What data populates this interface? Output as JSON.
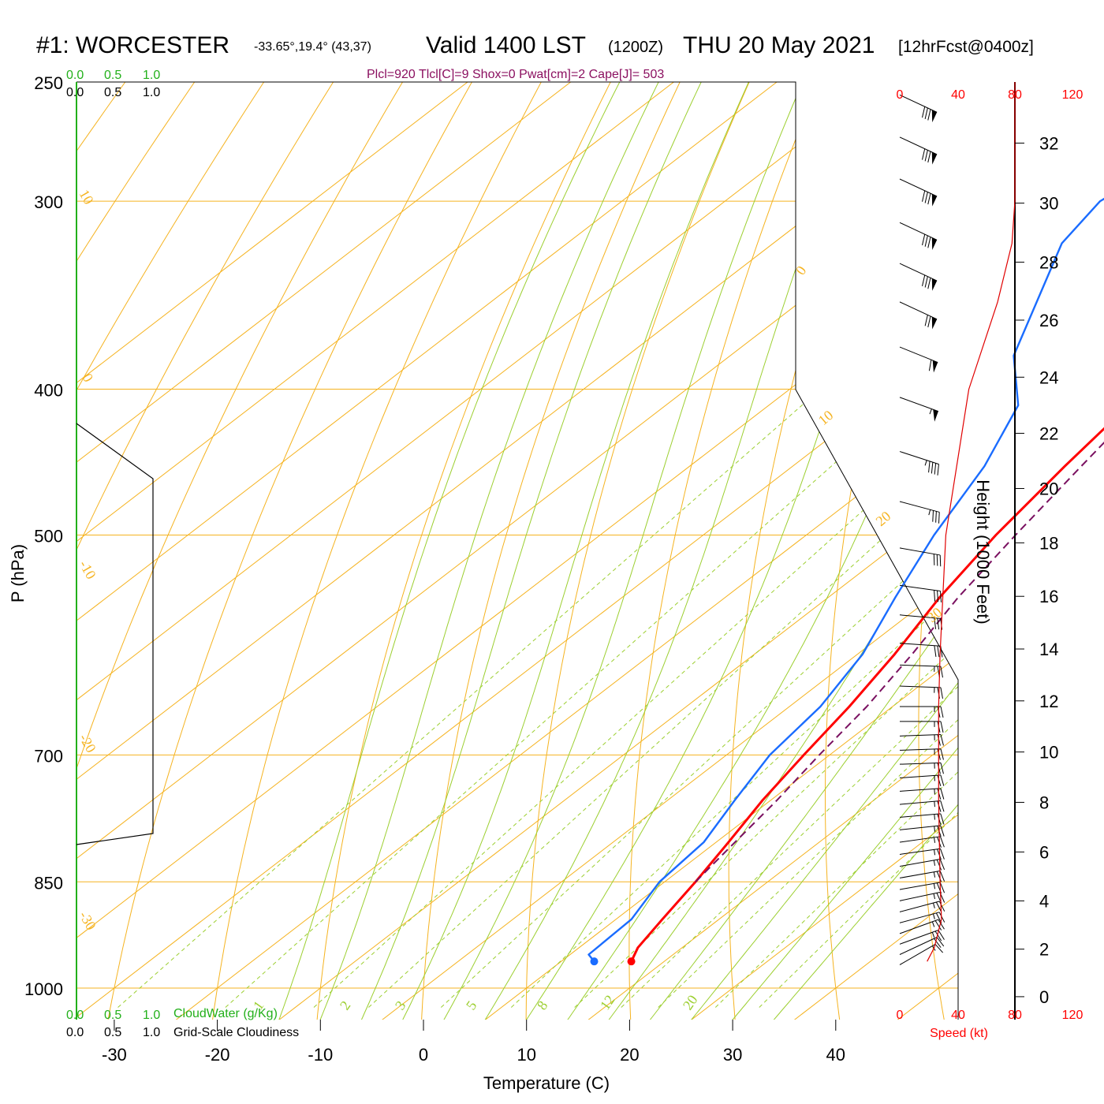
{
  "header": {
    "station": "#1: WORCESTER",
    "coords": "-33.65°,19.4° (43,37)",
    "valid_label": "Valid 1400 LST",
    "zulu": "(1200Z)",
    "date": "THU 20 May 2021",
    "forecast": "[12hrFcst@0400z]",
    "indices": "Plcl=920 Tlcl[C]=9 Shox=0 Pwat[cm]=2 Cape[J]= 503"
  },
  "cloud_scale": {
    "top_green": [
      "0.0",
      "0.5",
      "1.0"
    ],
    "top_black": [
      "0.0",
      "0.5",
      "1.0"
    ],
    "bottom_green": [
      "0.0",
      "0.5",
      "1.0"
    ],
    "bottom_black": [
      "0.0",
      "0.5",
      "1.0"
    ],
    "cloudwater_label": "CloudWater (g/Kg)",
    "cloudiness_label": "Grid-Scale Cloudiness"
  },
  "speed_axis": {
    "ticks": [
      "0",
      "40",
      "80",
      "120"
    ],
    "label": "Speed (kt)"
  },
  "colors": {
    "temperature": "#ff0000",
    "dewpoint": "#1a6cff",
    "parcel": "#7a1060",
    "isotherm": "#f5b320",
    "dry_adiabat": "#f5b320",
    "moist_adiabat": "#9ccf30",
    "mixing_ratio": "#9ccf30",
    "cloud": "#22b01a",
    "wind_speed": "#e00000"
  },
  "chart_data": {
    "type": "line",
    "ylabel": "P (hPa)",
    "xlabel": "Temperature (C)",
    "y2label": "Height (1000 Feet)",
    "pressure_ticks": [
      250,
      300,
      400,
      500,
      700,
      850,
      1000
    ],
    "ylim": [
      1000,
      250
    ],
    "temperature_ticks": [
      -30,
      -20,
      -10,
      0,
      10,
      20,
      30,
      40
    ],
    "height_ticks": [
      0,
      2,
      4,
      6,
      8,
      10,
      12,
      14,
      16,
      18,
      20,
      22,
      24,
      26,
      28,
      30,
      32
    ],
    "dry_adiabat_labels": [
      "10",
      "0",
      "-10",
      "-20",
      "-30",
      "0",
      "10",
      "20",
      "30"
    ],
    "mixing_ratio_labels": [
      "1",
      "2",
      "3",
      "5",
      "8",
      "12",
      "20"
    ],
    "series": [
      {
        "name": "Temperature",
        "points": [
          [
            16.8,
            960
          ],
          [
            15.7,
            940
          ],
          [
            14.5,
            900
          ],
          [
            13.0,
            850
          ],
          [
            11.2,
            800
          ],
          [
            9.2,
            750
          ],
          [
            7.5,
            700
          ],
          [
            5.8,
            650
          ],
          [
            3.6,
            600
          ],
          [
            0.8,
            550
          ],
          [
            -1.6,
            500
          ],
          [
            -3.6,
            450
          ],
          [
            -5.5,
            400
          ],
          [
            -7.1,
            350
          ],
          [
            -8.2,
            300
          ],
          [
            -8.5,
            280
          ],
          [
            -9.0,
            260
          ]
        ]
      },
      {
        "name": "Dewpoint",
        "points": [
          [
            13.2,
            960
          ],
          [
            11.8,
            950
          ],
          [
            11.5,
            900
          ],
          [
            9.5,
            850
          ],
          [
            8.8,
            800
          ],
          [
            6.5,
            750
          ],
          [
            4.2,
            700
          ],
          [
            3.0,
            650
          ],
          [
            0.5,
            600
          ],
          [
            -3.5,
            550
          ],
          [
            -7.6,
            500
          ],
          [
            -11.4,
            450
          ],
          [
            -15.8,
            410
          ],
          [
            -22.5,
            380
          ],
          [
            -32.0,
            320
          ],
          [
            -33.6,
            300
          ],
          [
            -30.2,
            260
          ]
        ]
      },
      {
        "name": "Parcel",
        "points": [
          [
            13.0,
            850
          ],
          [
            12.3,
            820
          ],
          [
            10.6,
            750
          ],
          [
            9.0,
            700
          ],
          [
            7.5,
            650
          ],
          [
            5.3,
            600
          ],
          [
            2.6,
            550
          ],
          [
            0.3,
            500
          ],
          [
            -2.0,
            450
          ],
          [
            -4.5,
            400
          ],
          [
            -5.2,
            390
          ]
        ]
      }
    ],
    "surface_temperature_c": 16.8,
    "surface_dewpoint_c": 13.2,
    "surface_pressure_hpa": 960,
    "wind_speed_profile_kt": [
      [
        19,
        960
      ],
      [
        24,
        940
      ],
      [
        29,
        900
      ],
      [
        28,
        850
      ],
      [
        27,
        750
      ],
      [
        27,
        650
      ],
      [
        28,
        600
      ],
      [
        32,
        500
      ],
      [
        48,
        400
      ],
      [
        68,
        350
      ],
      [
        78,
        320
      ],
      [
        80,
        300
      ],
      [
        80,
        250
      ]
    ],
    "wind_barbs": [
      {
        "p": 965,
        "dir": 240,
        "spd": 15
      },
      {
        "p": 950,
        "dir": 245,
        "spd": 20
      },
      {
        "p": 935,
        "dir": 250,
        "spd": 25
      },
      {
        "p": 920,
        "dir": 250,
        "spd": 25
      },
      {
        "p": 905,
        "dir": 255,
        "spd": 25
      },
      {
        "p": 890,
        "dir": 255,
        "spd": 25
      },
      {
        "p": 875,
        "dir": 258,
        "spd": 25
      },
      {
        "p": 860,
        "dir": 260,
        "spd": 25
      },
      {
        "p": 845,
        "dir": 260,
        "spd": 25
      },
      {
        "p": 830,
        "dir": 260,
        "spd": 25
      },
      {
        "p": 815,
        "dir": 262,
        "spd": 25
      },
      {
        "p": 800,
        "dir": 262,
        "spd": 25
      },
      {
        "p": 785,
        "dir": 264,
        "spd": 25
      },
      {
        "p": 770,
        "dir": 265,
        "spd": 25
      },
      {
        "p": 755,
        "dir": 265,
        "spd": 25
      },
      {
        "p": 740,
        "dir": 266,
        "spd": 25
      },
      {
        "p": 725,
        "dir": 266,
        "spd": 25
      },
      {
        "p": 710,
        "dir": 268,
        "spd": 25
      },
      {
        "p": 695,
        "dir": 268,
        "spd": 25
      },
      {
        "p": 680,
        "dir": 268,
        "spd": 25
      },
      {
        "p": 665,
        "dir": 270,
        "spd": 25
      },
      {
        "p": 650,
        "dir": 270,
        "spd": 25
      },
      {
        "p": 630,
        "dir": 272,
        "spd": 25
      },
      {
        "p": 610,
        "dir": 272,
        "spd": 25
      },
      {
        "p": 590,
        "dir": 274,
        "spd": 30
      },
      {
        "p": 565,
        "dir": 275,
        "spd": 30
      },
      {
        "p": 540,
        "dir": 278,
        "spd": 30
      },
      {
        "p": 510,
        "dir": 280,
        "spd": 30
      },
      {
        "p": 475,
        "dir": 285,
        "spd": 35
      },
      {
        "p": 440,
        "dir": 288,
        "spd": 45
      },
      {
        "p": 405,
        "dir": 290,
        "spd": 55
      },
      {
        "p": 375,
        "dir": 292,
        "spd": 60
      },
      {
        "p": 350,
        "dir": 295,
        "spd": 70
      },
      {
        "p": 330,
        "dir": 295,
        "spd": 80
      },
      {
        "p": 310,
        "dir": 295,
        "spd": 80
      },
      {
        "p": 290,
        "dir": 295,
        "spd": 80
      },
      {
        "p": 272,
        "dir": 295,
        "spd": 80
      },
      {
        "p": 255,
        "dir": 295,
        "spd": 80
      }
    ]
  }
}
